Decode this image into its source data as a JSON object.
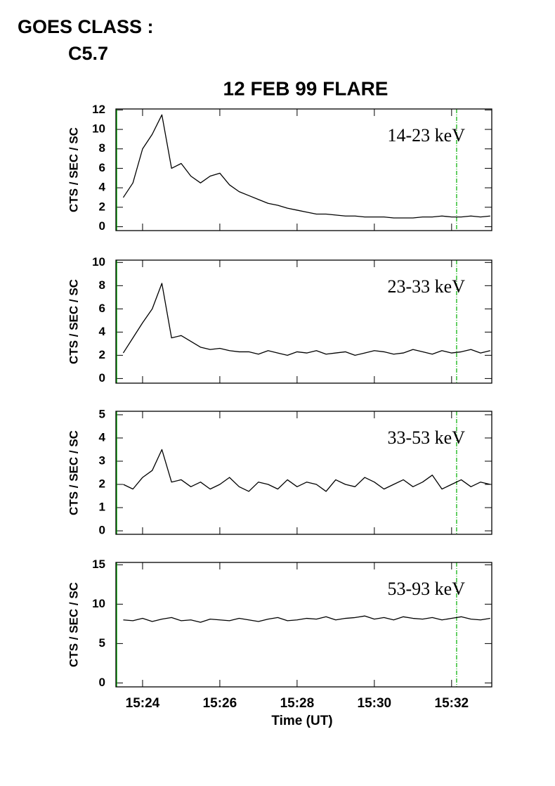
{
  "header": {
    "label": "GOES CLASS :",
    "value": "C5.7"
  },
  "chart_data": [
    {
      "type": "line",
      "title": "12 FEB 99 FLARE",
      "ylabel": "CTS / SEC / SC",
      "annotation": "14-23 keV",
      "color": "#000000",
      "vlines": [
        23.33,
        32.13
      ],
      "vline_color": "#00b000",
      "xlim": [
        23.31,
        33.04
      ],
      "xticks": [
        24,
        26,
        28,
        30,
        32
      ],
      "ylim": [
        -0.4,
        12.1
      ],
      "yticks": [
        0,
        2,
        4,
        6,
        8,
        10,
        12
      ],
      "x": [
        23.5,
        23.75,
        24.0,
        24.25,
        24.5,
        24.75,
        25.0,
        25.25,
        25.5,
        25.75,
        26.0,
        26.25,
        26.5,
        26.75,
        27.0,
        27.25,
        27.5,
        27.75,
        28.0,
        28.25,
        28.5,
        28.75,
        29.0,
        29.25,
        29.5,
        29.75,
        30.0,
        30.25,
        30.5,
        30.75,
        31.0,
        31.25,
        31.5,
        31.75,
        32.0,
        32.25,
        32.5,
        32.75,
        33.0
      ],
      "values": [
        3.0,
        4.5,
        8.0,
        9.5,
        11.5,
        6.0,
        6.5,
        5.2,
        4.5,
        5.2,
        5.5,
        4.3,
        3.6,
        3.2,
        2.8,
        2.4,
        2.2,
        1.9,
        1.7,
        1.5,
        1.3,
        1.3,
        1.2,
        1.1,
        1.1,
        1.0,
        1.0,
        1.0,
        0.9,
        0.9,
        0.9,
        1.0,
        1.0,
        1.1,
        1.0,
        1.0,
        1.1,
        1.0,
        1.1
      ]
    },
    {
      "type": "line",
      "ylabel": "CTS / SEC / SC",
      "annotation": "23-33 keV",
      "color": "#000000",
      "vlines": [
        23.33,
        32.13
      ],
      "vline_color": "#00b000",
      "xlim": [
        23.31,
        33.04
      ],
      "xticks": [
        24,
        26,
        28,
        30,
        32
      ],
      "ylim": [
        -0.4,
        10.2
      ],
      "yticks": [
        0,
        2,
        4,
        6,
        8,
        10
      ],
      "x": [
        23.5,
        23.75,
        24.0,
        24.25,
        24.5,
        24.75,
        25.0,
        25.25,
        25.5,
        25.75,
        26.0,
        26.25,
        26.5,
        26.75,
        27.0,
        27.25,
        27.5,
        27.75,
        28.0,
        28.25,
        28.5,
        28.75,
        29.0,
        29.25,
        29.5,
        29.75,
        30.0,
        30.25,
        30.5,
        30.75,
        31.0,
        31.25,
        31.5,
        31.75,
        32.0,
        32.25,
        32.5,
        32.75,
        33.0
      ],
      "values": [
        2.2,
        3.5,
        4.8,
        6.0,
        8.2,
        3.5,
        3.7,
        3.2,
        2.7,
        2.5,
        2.6,
        2.4,
        2.3,
        2.3,
        2.1,
        2.4,
        2.2,
        2.0,
        2.3,
        2.2,
        2.4,
        2.1,
        2.2,
        2.3,
        2.0,
        2.2,
        2.4,
        2.3,
        2.1,
        2.2,
        2.5,
        2.3,
        2.1,
        2.4,
        2.2,
        2.3,
        2.5,
        2.2,
        2.4
      ]
    },
    {
      "type": "line",
      "ylabel": "CTS / SEC / SC",
      "annotation": "33-53 keV",
      "color": "#000000",
      "vlines": [
        23.33,
        32.13
      ],
      "vline_color": "#00b000",
      "xlim": [
        23.31,
        33.04
      ],
      "xticks": [
        24,
        26,
        28,
        30,
        32
      ],
      "ylim": [
        -0.15,
        5.15
      ],
      "yticks": [
        0,
        1,
        2,
        3,
        4,
        5
      ],
      "x": [
        23.5,
        23.75,
        24.0,
        24.25,
        24.5,
        24.75,
        25.0,
        25.25,
        25.5,
        25.75,
        26.0,
        26.25,
        26.5,
        26.75,
        27.0,
        27.25,
        27.5,
        27.75,
        28.0,
        28.25,
        28.5,
        28.75,
        29.0,
        29.25,
        29.5,
        29.75,
        30.0,
        30.25,
        30.5,
        30.75,
        31.0,
        31.25,
        31.5,
        31.75,
        32.0,
        32.25,
        32.5,
        32.75,
        33.0
      ],
      "values": [
        2.0,
        1.8,
        2.3,
        2.6,
        3.5,
        2.1,
        2.2,
        1.9,
        2.1,
        1.8,
        2.0,
        2.3,
        1.9,
        1.7,
        2.1,
        2.0,
        1.8,
        2.2,
        1.9,
        2.1,
        2.0,
        1.7,
        2.2,
        2.0,
        1.9,
        2.3,
        2.1,
        1.8,
        2.0,
        2.2,
        1.9,
        2.1,
        2.4,
        1.8,
        2.0,
        2.2,
        1.9,
        2.1,
        2.0
      ]
    },
    {
      "type": "line",
      "ylabel": "CTS / SEC / SC",
      "annotation": "53-93 keV",
      "xlabel": "Time (UT)",
      "color": "#000000",
      "vlines": [
        23.33,
        32.13
      ],
      "vline_color": "#00b000",
      "xlim": [
        23.31,
        33.04
      ],
      "xticks": [
        {
          "value": 24,
          "label": "15:24"
        },
        {
          "value": 26,
          "label": "15:26"
        },
        {
          "value": 28,
          "label": "15:28"
        },
        {
          "value": 30,
          "label": "15:30"
        },
        {
          "value": 32,
          "label": "15:32"
        }
      ],
      "ylim": [
        -0.5,
        15.3
      ],
      "yticks": [
        0,
        5,
        10,
        15
      ],
      "x": [
        23.5,
        23.75,
        24.0,
        24.25,
        24.5,
        24.75,
        25.0,
        25.25,
        25.5,
        25.75,
        26.0,
        26.25,
        26.5,
        26.75,
        27.0,
        27.25,
        27.5,
        27.75,
        28.0,
        28.25,
        28.5,
        28.75,
        29.0,
        29.25,
        29.5,
        29.75,
        30.0,
        30.25,
        30.5,
        30.75,
        31.0,
        31.25,
        31.5,
        31.75,
        32.0,
        32.25,
        32.5,
        32.75,
        33.0
      ],
      "values": [
        8.0,
        7.9,
        8.2,
        7.8,
        8.1,
        8.3,
        7.9,
        8.0,
        7.7,
        8.1,
        8.0,
        7.9,
        8.2,
        8.0,
        7.8,
        8.1,
        8.3,
        7.9,
        8.0,
        8.2,
        8.1,
        8.4,
        8.0,
        8.2,
        8.3,
        8.5,
        8.1,
        8.3,
        8.0,
        8.4,
        8.2,
        8.1,
        8.3,
        8.0,
        8.2,
        8.4,
        8.1,
        8.0,
        8.2
      ]
    }
  ]
}
